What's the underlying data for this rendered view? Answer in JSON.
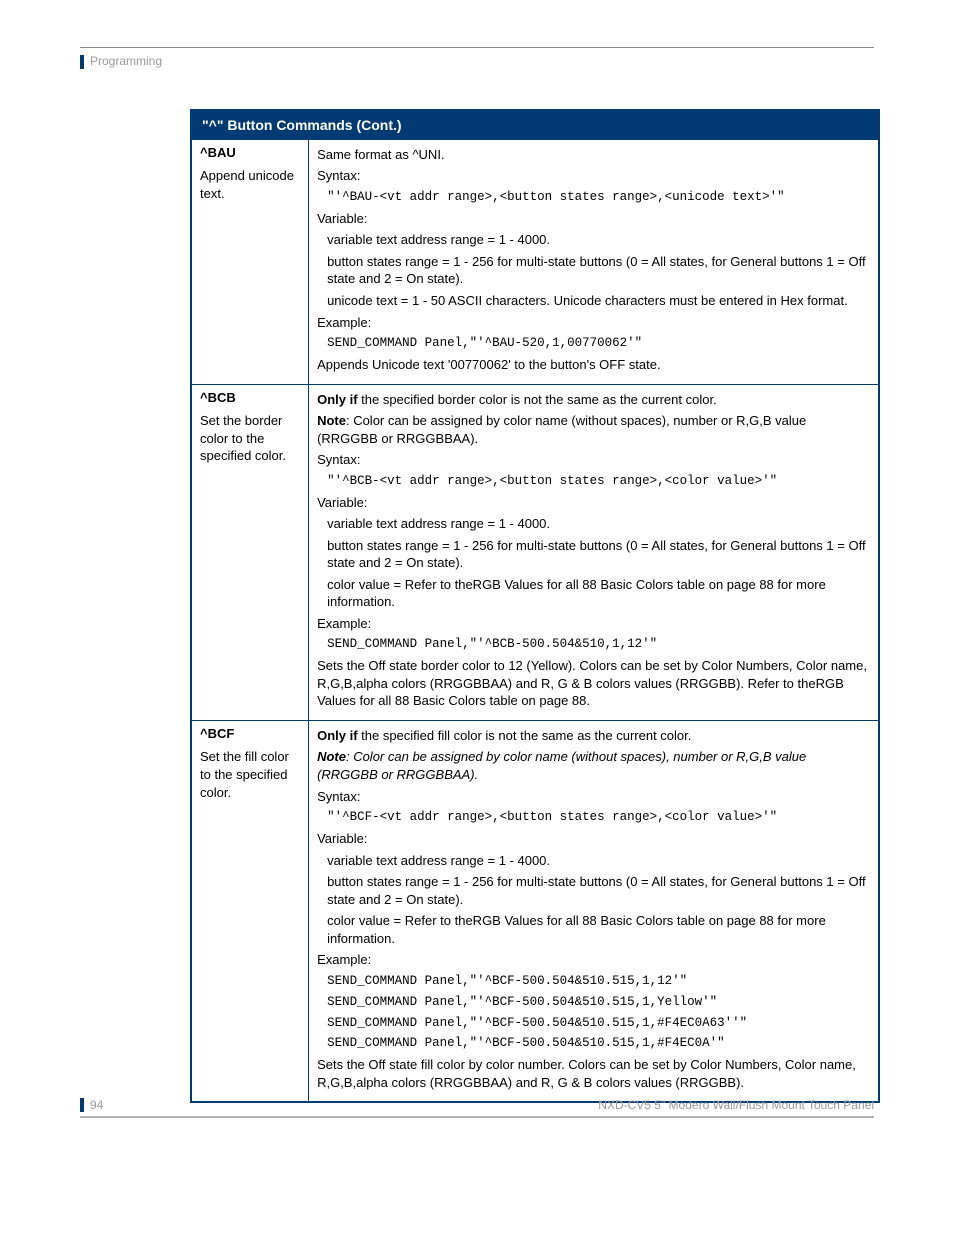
{
  "header": {
    "section": "Programming"
  },
  "table": {
    "title": "\"^\" Button Commands (Cont.)",
    "rows": [
      {
        "cmd": "^BAU",
        "desc": "Append unicode text.",
        "body": {
          "intro": "Same format as ^UNI.",
          "syntax_label": "Syntax:",
          "syntax_code": "\"'^BAU-<vt addr range>,<button states range>,<unicode text>'\"",
          "var_label": "Variable:",
          "vars": [
            "variable text address range = 1 - 4000.",
            "button states range = 1 - 256 for multi-state buttons (0 = All states, for General buttons 1 = Off state and 2 = On state).",
            "unicode text = 1 - 50 ASCII characters. Unicode characters must be entered in Hex format."
          ],
          "ex_label": "Example:",
          "ex_code": "SEND_COMMAND Panel,\"'^BAU-520,1,00770062'\"",
          "ex_result": "Appends Unicode text '00770062' to the button's OFF state."
        }
      },
      {
        "cmd": "^BCB",
        "desc": "Set the border color to the specified color.",
        "body": {
          "onlyif": "Only if",
          "onlyif_rest": " the specified border color is not the same as the current color.",
          "note_label": "Note",
          "note_rest": ": Color can be assigned by color name (without spaces), number or R,G,B value (RRGGBB or RRGGBBAA).",
          "italic_note": false,
          "syntax_label": "Syntax:",
          "syntax_code": "\"'^BCB-<vt addr range>,<button states range>,<color value>'\"",
          "var_label": "Variable:",
          "vars": [
            "variable text address range = 1 - 4000.",
            "button states range = 1 - 256 for multi-state buttons (0 = All states, for General buttons 1 = Off state and 2 = On state).",
            "color value = Refer to theRGB Values for all 88 Basic Colors table on page 88 for more information."
          ],
          "ex_label": "Example:",
          "ex_codes": [
            "SEND_COMMAND Panel,\"'^BCB-500.504&510,1,12'\""
          ],
          "ex_result": "Sets the Off state border color to 12 (Yellow). Colors can be set by Color Numbers, Color name, R,G,B,alpha colors (RRGGBBAA) and R, G & B colors values (RRGGBB). Refer to theRGB Values for all 88 Basic Colors table on page 88."
        }
      },
      {
        "cmd": "^BCF",
        "desc": "Set the fill color to the specified color.",
        "body": {
          "onlyif": "Only if",
          "onlyif_rest": " the specified fill color is not the same as the current color.",
          "note_label": "Note",
          "note_rest": ": Color can be assigned by color name (without spaces), number or R,G,B value (RRGGBB or RRGGBBAA).",
          "italic_note": true,
          "syntax_label": "Syntax:",
          "syntax_code": "\"'^BCF-<vt addr range>,<button states range>,<color value>'\"",
          "var_label": "Variable:",
          "vars": [
            "variable text address range = 1 - 4000.",
            "button states range = 1 - 256 for multi-state buttons (0 = All states, for General buttons 1 = Off state and 2 = On state).",
            "color value = Refer to theRGB Values for all 88 Basic Colors table on page 88 for more information."
          ],
          "ex_label": "Example:",
          "ex_codes": [
            "SEND_COMMAND Panel,\"'^BCF-500.504&510.515,1,12'\"",
            "SEND_COMMAND Panel,\"'^BCF-500.504&510.515,1,Yellow'\"",
            "SEND_COMMAND Panel,\"'^BCF-500.504&510.515,1,#F4EC0A63''\"",
            "SEND_COMMAND Panel,\"'^BCF-500.504&510.515,1,#F4EC0A'\""
          ],
          "ex_result": "Sets the Off state fill color by color number. Colors can be set by Color Numbers, Color name, R,G,B,alpha colors (RRGGBBAA) and R, G & B colors values (RRGGBB)."
        }
      }
    ]
  },
  "footer": {
    "page": "94",
    "product": "NXD-CV5 5\" Modero Wall/Flush Mount Touch Panel"
  }
}
